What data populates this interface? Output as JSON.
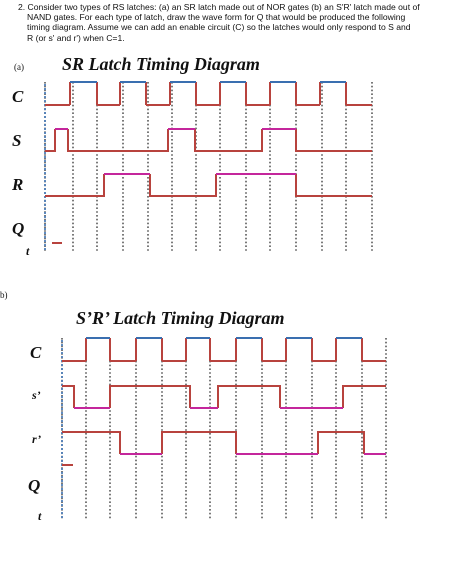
{
  "question": {
    "lines": [
      "2.  Consider two types of RS latches: (a) an SR latch made out of NOR gates (b) an S'R' latch made out of",
      "NAND gates.  For each type of latch, draw the wave form for Q that would be produced the following",
      "timing diagram.   Assume we can add an enable circuit (C) so the latches would only respond to S and",
      "R (or s' and r') when C=1."
    ]
  },
  "colors": {
    "clock": "#3a6fb0",
    "signal": "#b8433e",
    "highlight": "#c4269c",
    "grid": "#222222",
    "axis": "#3a6fb0"
  },
  "part_a": {
    "label": "(a)",
    "title": "SR Latch Timing Diagram",
    "signals": [
      "C",
      "S",
      "R",
      "Q",
      "t"
    ]
  },
  "part_b": {
    "label": "b)",
    "title": "S’R’ Latch Timing Diagram",
    "signals": [
      "C",
      "s’",
      "r’",
      "Q",
      "t"
    ]
  }
}
